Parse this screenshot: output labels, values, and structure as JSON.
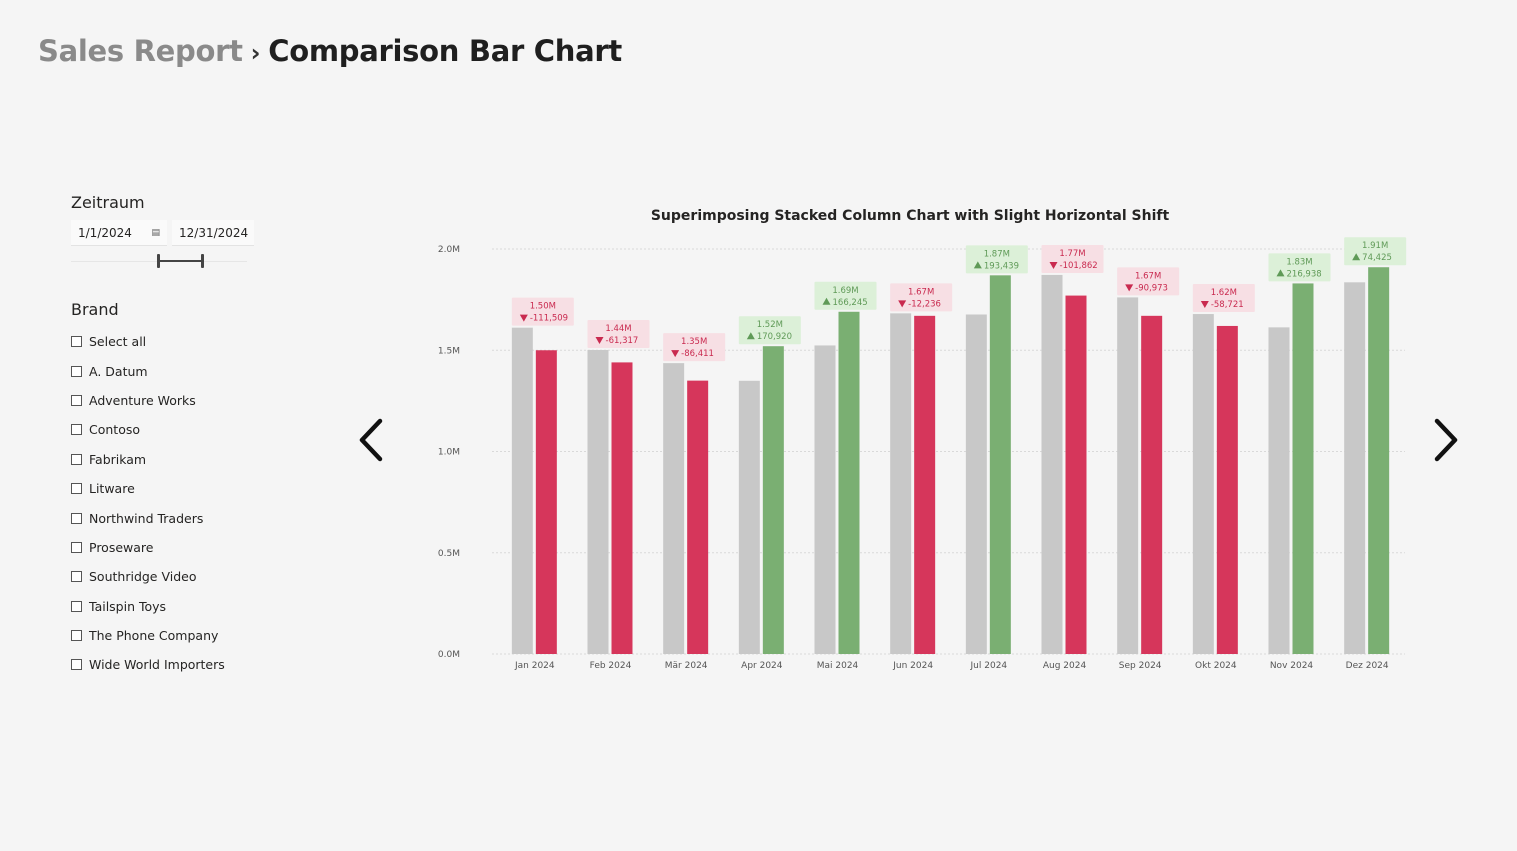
{
  "breadcrumb": {
    "parent": "Sales Report",
    "separator": "›",
    "current": "Comparison Bar Chart"
  },
  "date_slicer": {
    "title": "Zeitraum",
    "start": "1/1/2024",
    "end": "12/31/2024",
    "calendar_icon": "calendar-icon"
  },
  "brand_slicer": {
    "title": "Brand",
    "items": [
      {
        "label": "Select all",
        "checked": false
      },
      {
        "label": "A. Datum",
        "checked": false
      },
      {
        "label": "Adventure Works",
        "checked": false
      },
      {
        "label": "Contoso",
        "checked": false
      },
      {
        "label": "Fabrikam",
        "checked": false
      },
      {
        "label": "Litware",
        "checked": false
      },
      {
        "label": "Northwind Traders",
        "checked": false
      },
      {
        "label": "Proseware",
        "checked": false
      },
      {
        "label": "Southridge Video",
        "checked": false
      },
      {
        "label": "Tailspin Toys",
        "checked": false
      },
      {
        "label": "The Phone Company",
        "checked": false
      },
      {
        "label": "Wide World Importers",
        "checked": false
      }
    ]
  },
  "navigation": {
    "prev_icon": "chevron-left-icon",
    "next_icon": "chevron-right-icon"
  },
  "colors": {
    "previous": "#c8c8c8",
    "decrease": "#d6365b",
    "increase": "#7aaf72",
    "decrease_label_bg": "#f7dfe4",
    "increase_label_bg": "#dcf0d8",
    "grid": "#d9d9d9"
  },
  "chart_data": {
    "type": "bar",
    "title": "Superimposing Stacked Column Chart with Slight Horizontal Shift",
    "categories": [
      "Jan 2024",
      "Feb 2024",
      "Mär 2024",
      "Apr 2024",
      "Mai 2024",
      "Jun 2024",
      "Jul 2024",
      "Aug 2024",
      "Sep 2024",
      "Okt 2024",
      "Nov 2024",
      "Dez 2024"
    ],
    "y_ticks": [
      "0.0M",
      "0.5M",
      "1.0M",
      "1.5M",
      "2.0M"
    ],
    "ylim": [
      0,
      2000000
    ],
    "grid": true,
    "series": [
      {
        "values": [
          1611509,
          1501317,
          1436411,
          1349080,
          1523755,
          1682236,
          1676561,
          1871862,
          1760973,
          1678721,
          1613062,
          1835575
        ]
      },
      {
        "values": [
          1500000,
          1440000,
          1350000,
          1520000,
          1690000,
          1670000,
          1870000,
          1770000,
          1670000,
          1620000,
          1830000,
          1910000
        ]
      }
    ],
    "data_labels": [
      "1.50M",
      "1.44M",
      "1.35M",
      "1.52M",
      "1.69M",
      "1.67M",
      "1.87M",
      "1.77M",
      "1.67M",
      "1.62M",
      "1.83M",
      "1.91M"
    ],
    "variance_labels": [
      "-111,509",
      "-61,317",
      "-86,411",
      "170,920",
      "166,245",
      "-12,236",
      "193,439",
      "-101,862",
      "-90,973",
      "-58,721",
      "216,938",
      "74,425"
    ],
    "variance_direction": [
      "down",
      "down",
      "down",
      "up",
      "up",
      "down",
      "up",
      "down",
      "down",
      "down",
      "up",
      "up"
    ]
  }
}
